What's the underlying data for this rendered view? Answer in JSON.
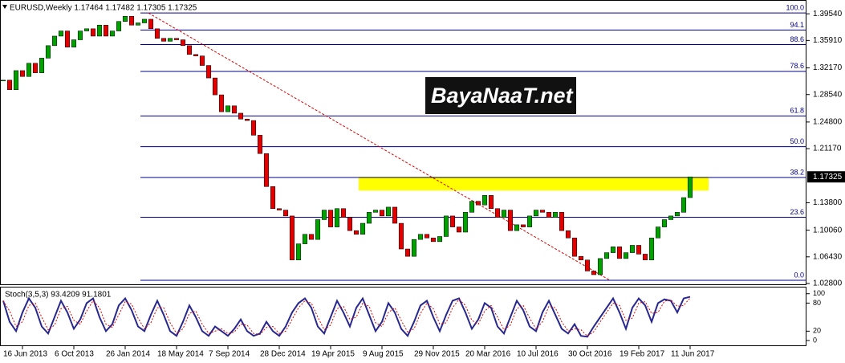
{
  "chart_data": [
    {
      "type": "candlestick",
      "title": "EURUSD,Weekly  1.17464 1.17482 1.17305 1.17325",
      "watermark": "BayaNaaT.net",
      "x": [
        0,
        2,
        4,
        6,
        8,
        10,
        12,
        14,
        16,
        18,
        20,
        22,
        24,
        26,
        28,
        30,
        32,
        34,
        36,
        38,
        40,
        42,
        44,
        46,
        48,
        50,
        52,
        54,
        56,
        58,
        60,
        62,
        64,
        66,
        68,
        70,
        72,
        74,
        76,
        78,
        80,
        82,
        84,
        86,
        88,
        90,
        92,
        94,
        96,
        98,
        100,
        102,
        104,
        106,
        108,
        110,
        112,
        114,
        116,
        118,
        120,
        122,
        124,
        126,
        128,
        130,
        132,
        134,
        136,
        138,
        140,
        142,
        144,
        146,
        148,
        150,
        152,
        154,
        156,
        158,
        160,
        162,
        164,
        166,
        168,
        170,
        172,
        174,
        176,
        178,
        180,
        182,
        184,
        186,
        188,
        190,
        192,
        194,
        196,
        198,
        200,
        202,
        204,
        206,
        208,
        210,
        212,
        214
      ],
      "values": [
        1.305,
        1.292,
        1.318,
        1.31,
        1.328,
        1.315,
        1.335,
        1.352,
        1.365,
        1.372,
        1.35,
        1.36,
        1.372,
        1.375,
        1.365,
        1.38,
        1.365,
        1.372,
        1.385,
        1.392,
        1.38,
        1.383,
        1.388,
        1.375,
        1.362,
        1.358,
        1.362,
        1.36,
        1.352,
        1.34,
        1.338,
        1.325,
        1.308,
        1.285,
        1.262,
        1.27,
        1.26,
        1.252,
        1.25,
        1.23,
        1.205,
        1.16,
        1.13,
        1.128,
        1.12,
        1.06,
        1.082,
        1.095,
        1.088,
        1.115,
        1.128,
        1.105,
        1.13,
        1.118,
        1.1,
        1.095,
        1.11,
        1.125,
        1.128,
        1.12,
        1.132,
        1.11,
        1.075,
        1.065,
        1.088,
        1.095,
        1.09,
        1.085,
        1.092,
        1.12,
        1.105,
        1.098,
        1.125,
        1.14,
        1.135,
        1.148,
        1.13,
        1.118,
        1.128,
        1.1,
        1.108,
        1.105,
        1.12,
        1.128,
        1.125,
        1.118,
        1.125,
        1.1,
        1.09,
        1.065,
        1.06,
        1.045,
        1.04,
        1.062,
        1.07,
        1.078,
        1.062,
        1.07,
        1.08,
        1.068,
        1.06,
        1.09,
        1.105,
        1.115,
        1.12,
        1.125,
        1.145,
        1.17325
      ],
      "colors": {
        "up": "#00a000",
        "down": "#e00000"
      },
      "xlim": [
        -1,
        250.25
      ],
      "ylim": [
        1.0258,
        1.4142
      ],
      "yticks": [
        {
          "value": 1.3954,
          "label": "1.39540"
        },
        {
          "value": 1.3591,
          "label": "1.35910"
        },
        {
          "value": 1.3217,
          "label": "1.32170"
        },
        {
          "value": 1.2854,
          "label": "1.28540"
        },
        {
          "value": 1.248,
          "label": "1.24800"
        },
        {
          "value": 1.2117,
          "label": "1.21170"
        },
        {
          "value": 1.138,
          "label": "1.13800"
        },
        {
          "value": 1.1006,
          "label": "1.10060"
        },
        {
          "value": 1.0643,
          "label": "1.06430"
        },
        {
          "value": 1.028,
          "label": "1.02800"
        }
      ],
      "xticks": [
        {
          "value": 6,
          "label": "16 Jun 2013"
        },
        {
          "value": 22,
          "label": "6 Oct 2013"
        },
        {
          "value": 38,
          "label": "26 Jan 2014"
        },
        {
          "value": 54,
          "label": "18 May 2014"
        },
        {
          "value": 70,
          "label": "7 Sep 2014"
        },
        {
          "value": 86,
          "label": "28 Dec 2014"
        },
        {
          "value": 102,
          "label": "19 Apr 2015"
        },
        {
          "value": 118,
          "label": "9 Aug 2015"
        },
        {
          "value": 134,
          "label": "29 Nov 2015"
        },
        {
          "value": 150,
          "label": "20 Mar 2016"
        },
        {
          "value": 166,
          "label": "10 Jul 2016"
        },
        {
          "value": 182,
          "label": "30 Oct 2016"
        },
        {
          "value": 198,
          "label": "19 Feb 2017"
        },
        {
          "value": 214,
          "label": "11 Jun 2017"
        }
      ],
      "fib_levels": [
        {
          "label": "100.0",
          "value": 1.3965
        },
        {
          "label": "94.1",
          "value": 1.3733
        },
        {
          "label": "88.6",
          "value": 1.3535
        },
        {
          "label": "78.6",
          "value": 1.317
        },
        {
          "label": "61.8",
          "value": 1.2563
        },
        {
          "label": "50.0",
          "value": 1.2144
        },
        {
          "label": "38.2",
          "value": 1.1724
        },
        {
          "label": "23.6",
          "value": 1.1183
        },
        {
          "label": "0.0",
          "value": 1.0323
        }
      ],
      "fib_color": "#00008b",
      "highlight_zone": {
        "x": [
          110.75,
          219.75
        ],
        "y": [
          1.1547,
          1.1735
        ],
        "color": "#ffff00"
      },
      "trendline": {
        "x": [
          45.25,
          189
        ],
        "y": [
          1.3965,
          1.0323
        ],
        "color": "#e00000"
      },
      "last_price": {
        "value": 1.17325,
        "label": "1.17325"
      }
    },
    {
      "type": "line",
      "title": "Stoch(3,5,3) 93.4209 91.1801",
      "ylim": [
        -12,
        115
      ],
      "yticks": [
        0,
        20,
        80,
        100
      ],
      "series": [
        {
          "color": "#27278f",
          "values": [
            85,
            40,
            20,
            60,
            90,
            70,
            30,
            15,
            50,
            85,
            60,
            25,
            45,
            80,
            90,
            50,
            20,
            35,
            75,
            90,
            65,
            30,
            20,
            55,
            85,
            55,
            20,
            10,
            40,
            75,
            50,
            20,
            10,
            30,
            20,
            10,
            25,
            45,
            20,
            10,
            15,
            40,
            20,
            10,
            30,
            60,
            80,
            90,
            70,
            30,
            15,
            50,
            85,
            60,
            30,
            70,
            90,
            55,
            20,
            40,
            80,
            60,
            25,
            10,
            40,
            75,
            85,
            50,
            20,
            55,
            85,
            90,
            60,
            25,
            45,
            80,
            70,
            30,
            15,
            50,
            85,
            65,
            30,
            20,
            60,
            85,
            55,
            25,
            15,
            35,
            10,
            8,
            30,
            50,
            70,
            90,
            60,
            25,
            70,
            90,
            75,
            40,
            80,
            88,
            85,
            60,
            90,
            93.4209
          ]
        },
        {
          "color": "#e00000",
          "dashed": true,
          "values": [
            85,
            63,
            30,
            40,
            75,
            80,
            50,
            23,
            33,
            68,
            73,
            43,
            35,
            63,
            85,
            70,
            35,
            28,
            55,
            83,
            78,
            48,
            25,
            38,
            70,
            70,
            38,
            15,
            25,
            58,
            63,
            35,
            15,
            20,
            25,
            15,
            18,
            35,
            33,
            15,
            13,
            28,
            30,
            15,
            20,
            45,
            70,
            85,
            80,
            50,
            23,
            33,
            68,
            73,
            45,
            50,
            80,
            73,
            38,
            30,
            60,
            70,
            43,
            18,
            25,
            58,
            80,
            68,
            35,
            38,
            70,
            88,
            75,
            43,
            35,
            63,
            75,
            50,
            23,
            33,
            68,
            75,
            48,
            25,
            40,
            73,
            70,
            40,
            20,
            25,
            23,
            9,
            19,
            40,
            60,
            80,
            75,
            43,
            48,
            80,
            83,
            58,
            60,
            84,
            87,
            73,
            75,
            91.1801
          ]
        }
      ]
    }
  ]
}
